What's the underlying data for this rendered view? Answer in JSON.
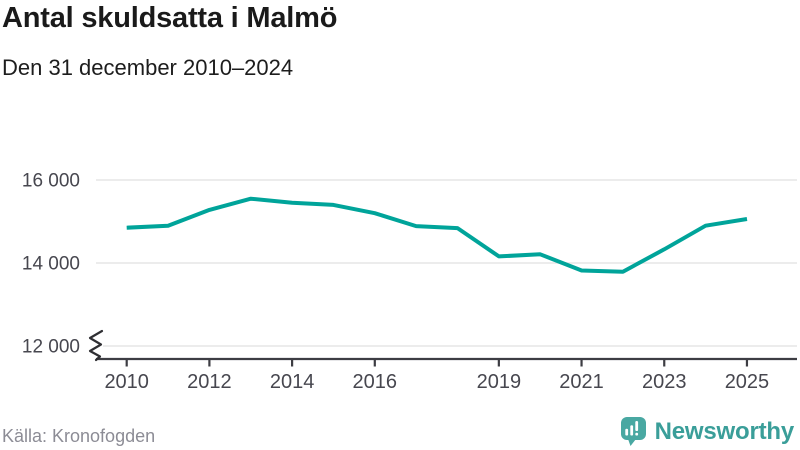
{
  "header": {
    "title": "Antal skuldsatta i Malmö",
    "subtitle": "Den 31 december 2010–2024"
  },
  "chart_data": {
    "type": "line",
    "title": "Antal skuldsatta i Malmö",
    "subtitle": "Den 31 december 2010–2024",
    "x": [
      2010,
      2011,
      2012,
      2013,
      2014,
      2015,
      2016,
      2017,
      2018,
      2019,
      2020,
      2021,
      2022,
      2023,
      2024,
      2025
    ],
    "values": [
      14850,
      14900,
      15280,
      15550,
      15450,
      15400,
      15200,
      14890,
      14840,
      14160,
      14210,
      13820,
      13790,
      14330,
      14900,
      15060
    ],
    "line_color": "#00a49a",
    "y_ticks": {
      "values": [
        16000,
        14000,
        12000
      ],
      "labels": [
        "16 000",
        "14 000",
        "12 000"
      ]
    },
    "x_ticks": [
      2010,
      2012,
      2014,
      2016,
      2019,
      2021,
      2023,
      2025
    ],
    "ylim": [
      12000,
      16000
    ],
    "grid": "horizontal",
    "axis_break": true,
    "legend": "none"
  },
  "footer": {
    "source": "Källa: Kronofogden",
    "logo_text": "Newsworthy",
    "logo_color": "#3a9e99",
    "logo_icon_color": "#49a8a2"
  }
}
